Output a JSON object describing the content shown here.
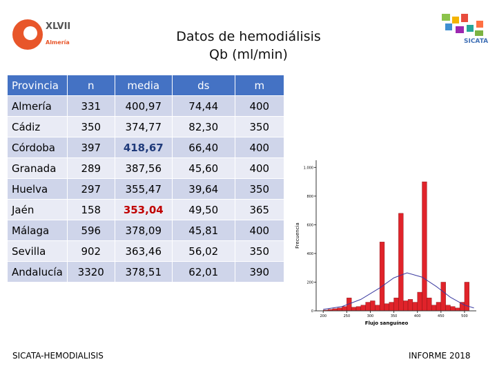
{
  "header": {
    "title": "Datos de hemodiálisis",
    "subtitle": "Qb (ml/min)"
  },
  "logo_left": {
    "text": "XLVII",
    "city": "Almería"
  },
  "logo_right": {
    "text": "SICATA"
  },
  "table": {
    "columns": [
      "Provincia",
      "n",
      "media",
      "ds",
      "m"
    ],
    "rows": [
      [
        "Almería",
        "331",
        "400,97",
        "74,44",
        "400"
      ],
      [
        "Cádiz",
        "350",
        "374,77",
        "82,30",
        "350"
      ],
      [
        "Córdoba",
        "397",
        "418,67",
        "66,40",
        "400"
      ],
      [
        "Granada",
        "289",
        "387,56",
        "45,60",
        "400"
      ],
      [
        "Huelva",
        "297",
        "355,47",
        "39,64",
        "350"
      ],
      [
        "Jaén",
        "158",
        "353,04",
        "49,50",
        "365"
      ],
      [
        "Málaga",
        "596",
        "378,09",
        "45,81",
        "400"
      ],
      [
        "Sevilla",
        "902",
        "363,46",
        "56,02",
        "350"
      ],
      [
        "Andalucía",
        "3320",
        "378,51",
        "62,01",
        "390"
      ]
    ]
  },
  "chart_data": {
    "type": "histogram",
    "xlabel": "Flujo sanguíneo",
    "ylabel": "Frecuencia",
    "bins": [
      200,
      210,
      220,
      230,
      240,
      250,
      260,
      270,
      280,
      290,
      300,
      310,
      320,
      330,
      340,
      350,
      360,
      370,
      380,
      390,
      400,
      410,
      420,
      430,
      440,
      450,
      460,
      470,
      480,
      490,
      500,
      510
    ],
    "values": [
      5,
      10,
      15,
      20,
      30,
      90,
      25,
      30,
      40,
      60,
      70,
      40,
      480,
      50,
      60,
      90,
      680,
      70,
      80,
      60,
      130,
      900,
      90,
      40,
      60,
      200,
      40,
      30,
      20,
      60,
      200
    ],
    "color": "#e0232a",
    "curve": {
      "color": "#3a3aa0",
      "x": [
        200,
        240,
        280,
        320,
        350,
        378,
        410,
        440,
        470,
        500,
        520
      ],
      "values": [
        10,
        30,
        80,
        160,
        230,
        265,
        235,
        170,
        95,
        40,
        20
      ]
    },
    "xlim": [
      185,
      525
    ],
    "xticks": [
      200,
      250,
      300,
      350,
      400,
      450,
      500
    ],
    "ylim": [
      0,
      1050
    ],
    "yticks": [
      0,
      200,
      400,
      600,
      800,
      {
        "value": 1000,
        "label": "1.000"
      }
    ]
  },
  "footer": {
    "left": "SICATA-HEMODIALISIS",
    "right": "INFORME 2018"
  }
}
